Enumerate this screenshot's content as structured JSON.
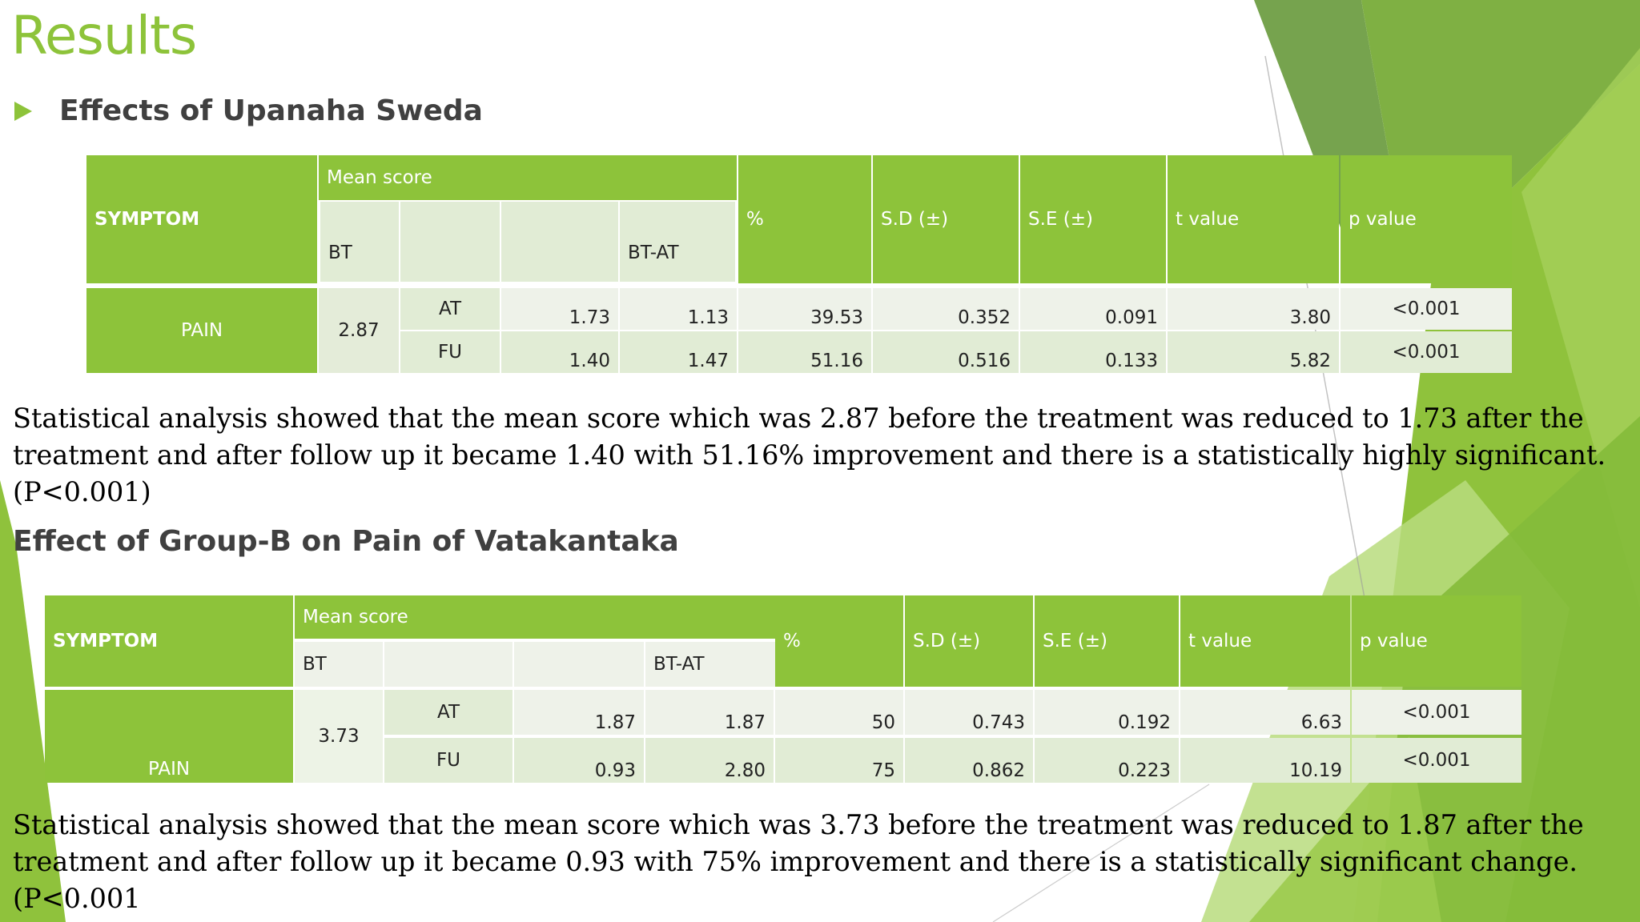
{
  "title": "Results",
  "subtitle": "Effects of Upanaha Sweda",
  "section2_title": "Effect of Group-B on Pain of Vatakantaka",
  "headers": {
    "symptom": "SYMPTOM",
    "mean_score": "Mean score",
    "bt": "BT",
    "bt_at": "BT-AT",
    "percent": "%",
    "sd": "S.D (±)",
    "se": "S.E  (±)",
    "t_value": "t value",
    "p_value": "p value"
  },
  "table1": {
    "symptom": "PAIN",
    "bt": "2.87",
    "rows": [
      {
        "label": "AT",
        "mean": "1.73",
        "diff": "1.13",
        "percent": "39.53",
        "sd": "0.352",
        "se": "0.091",
        "t": "3.80",
        "p": "<0.001"
      },
      {
        "label": "FU",
        "mean": "1.40",
        "diff": "1.47",
        "percent": "51.16",
        "sd": "0.516",
        "se": "0.133",
        "t": "5.82",
        "p": "<0.001"
      }
    ]
  },
  "para1": "Statistical analysis showed that the mean score which was 2.87 before the treatment was reduced to 1.73 after the treatment and after follow up it became 1.40 with 51.16% improvement and there is a statistically highly significant. (P<0.001)",
  "table2": {
    "symptom": "PAIN",
    "bt": "3.73",
    "rows": [
      {
        "label": "AT",
        "mean": "1.87",
        "diff": "1.87",
        "percent": "50",
        "sd": "0.743",
        "se": "0.192",
        "t": "6.63",
        "p": "<0.001"
      },
      {
        "label": "FU",
        "mean": "0.93",
        "diff": "2.80",
        "percent": "75",
        "sd": "0.862",
        "se": "0.223",
        "t": "10.19",
        "p": "<0.001"
      }
    ]
  },
  "para2": "Statistical analysis showed that the mean score which was 3.73 before the treatment was reduced to 1.87 after the treatment and after follow up it became 0.93 with 75% improvement and there is a statistically significant change. (P<0.001",
  "colors": {
    "accent": "#8dc33a",
    "dark_green": "#5f9a32",
    "text": "#404040"
  }
}
